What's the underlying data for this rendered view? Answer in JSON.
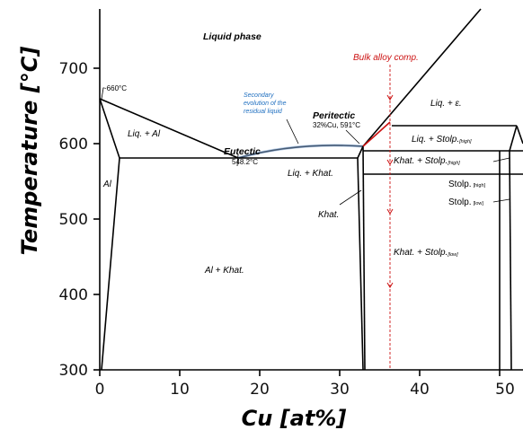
{
  "chart_data": {
    "type": "phase-diagram",
    "xlabel": "Cu [at%]",
    "ylabel": "Temperature [°C]",
    "xlim": [
      0,
      52
    ],
    "ylim": [
      300,
      790
    ],
    "x_ticks": [
      "0",
      "10",
      "20",
      "30",
      "40",
      "50"
    ],
    "y_ticks": [
      "300",
      "400",
      "500",
      "600",
      "700"
    ],
    "phase_labels": {
      "liquid": "Liquid phase",
      "liq_al": "Liq. + Al",
      "al": "Al",
      "al_khat": "Al + Khat.",
      "liq_khat": "Liq. + Khat.",
      "khat": "Khat.",
      "liq_eps": "Liq. + ε.",
      "liq_stolp": "Liq. + Stolp.",
      "liq_stolp_sub": "[high]",
      "khat_stolp_high": "Khat. + Stolp.",
      "khat_stolp_high_sub": "[high]",
      "khat_stolp_low": "Khat. + Stolp.",
      "khat_stolp_low_sub": "[low]",
      "stolp_high": "Stolp.",
      "stolp_high_sub": "[high]",
      "stolp_low": "Stolp.",
      "stolp_low_sub": "[low]"
    },
    "annotations": {
      "melting_al": "~660°C",
      "eutectic_title": "Eutectic",
      "eutectic_value": "548.2°C",
      "peritectic_title": "Peritectic",
      "peritectic_value": "32%Cu, 591°C",
      "secondary_line1": "Secondary",
      "secondary_line2": "evolution of the",
      "secondary_line3": "residual liquid",
      "bulk_alloy": "Bulk alloy comp."
    },
    "key_points": {
      "al_melting": {
        "x": 0,
        "y": 660
      },
      "eutectic": {
        "x": 17.3,
        "y": 548.2
      },
      "peritectic": {
        "x": 32,
        "y": 591
      },
      "bulk_alloy_x": 36
    },
    "colors": {
      "lines": "#000000",
      "bulk_line": "#cc1111",
      "secondary_path": "#7fa6d6",
      "note_text": "#1f6fc0"
    }
  }
}
